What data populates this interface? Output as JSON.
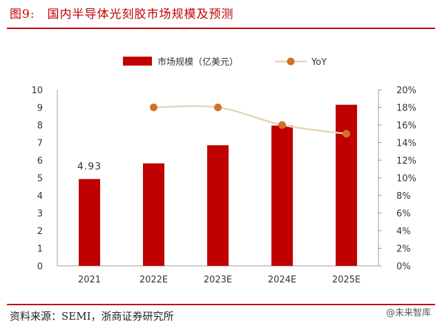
{
  "figure": {
    "number": "图9:",
    "title": "国内半导体光刻胶市场规模及预测",
    "source": "资料来源：SEMI，浙商证券研究所",
    "watermark": "@未来智库"
  },
  "colors": {
    "bar": "#c00000",
    "line": "#e3d4ba",
    "marker": "#d1722a",
    "accent": "#c00000"
  },
  "chart_data": {
    "type": "bar",
    "categories": [
      "2021",
      "2022E",
      "2023E",
      "2024E",
      "2025E"
    ],
    "series": [
      {
        "name": "市场规模（亿美元）",
        "type": "bar",
        "axis": "left",
        "values": [
          4.93,
          5.82,
          6.85,
          7.97,
          9.15
        ]
      },
      {
        "name": "YoY",
        "type": "line",
        "axis": "right",
        "values": [
          null,
          18.0,
          18.0,
          16.0,
          15.0
        ]
      }
    ],
    "data_labels": [
      {
        "category": "2021",
        "text": "4.93"
      }
    ],
    "y_left": {
      "min": 0,
      "max": 10,
      "step": 1,
      "ticks": [
        "0",
        "1",
        "2",
        "3",
        "4",
        "5",
        "6",
        "7",
        "8",
        "9",
        "10"
      ]
    },
    "y_right": {
      "min": 0,
      "max": 20,
      "step": 2,
      "unit": "%",
      "ticks": [
        "0%",
        "2%",
        "4%",
        "6%",
        "8%",
        "10%",
        "12%",
        "14%",
        "16%",
        "18%",
        "20%"
      ]
    },
    "grid": false,
    "legend_position": "top"
  }
}
